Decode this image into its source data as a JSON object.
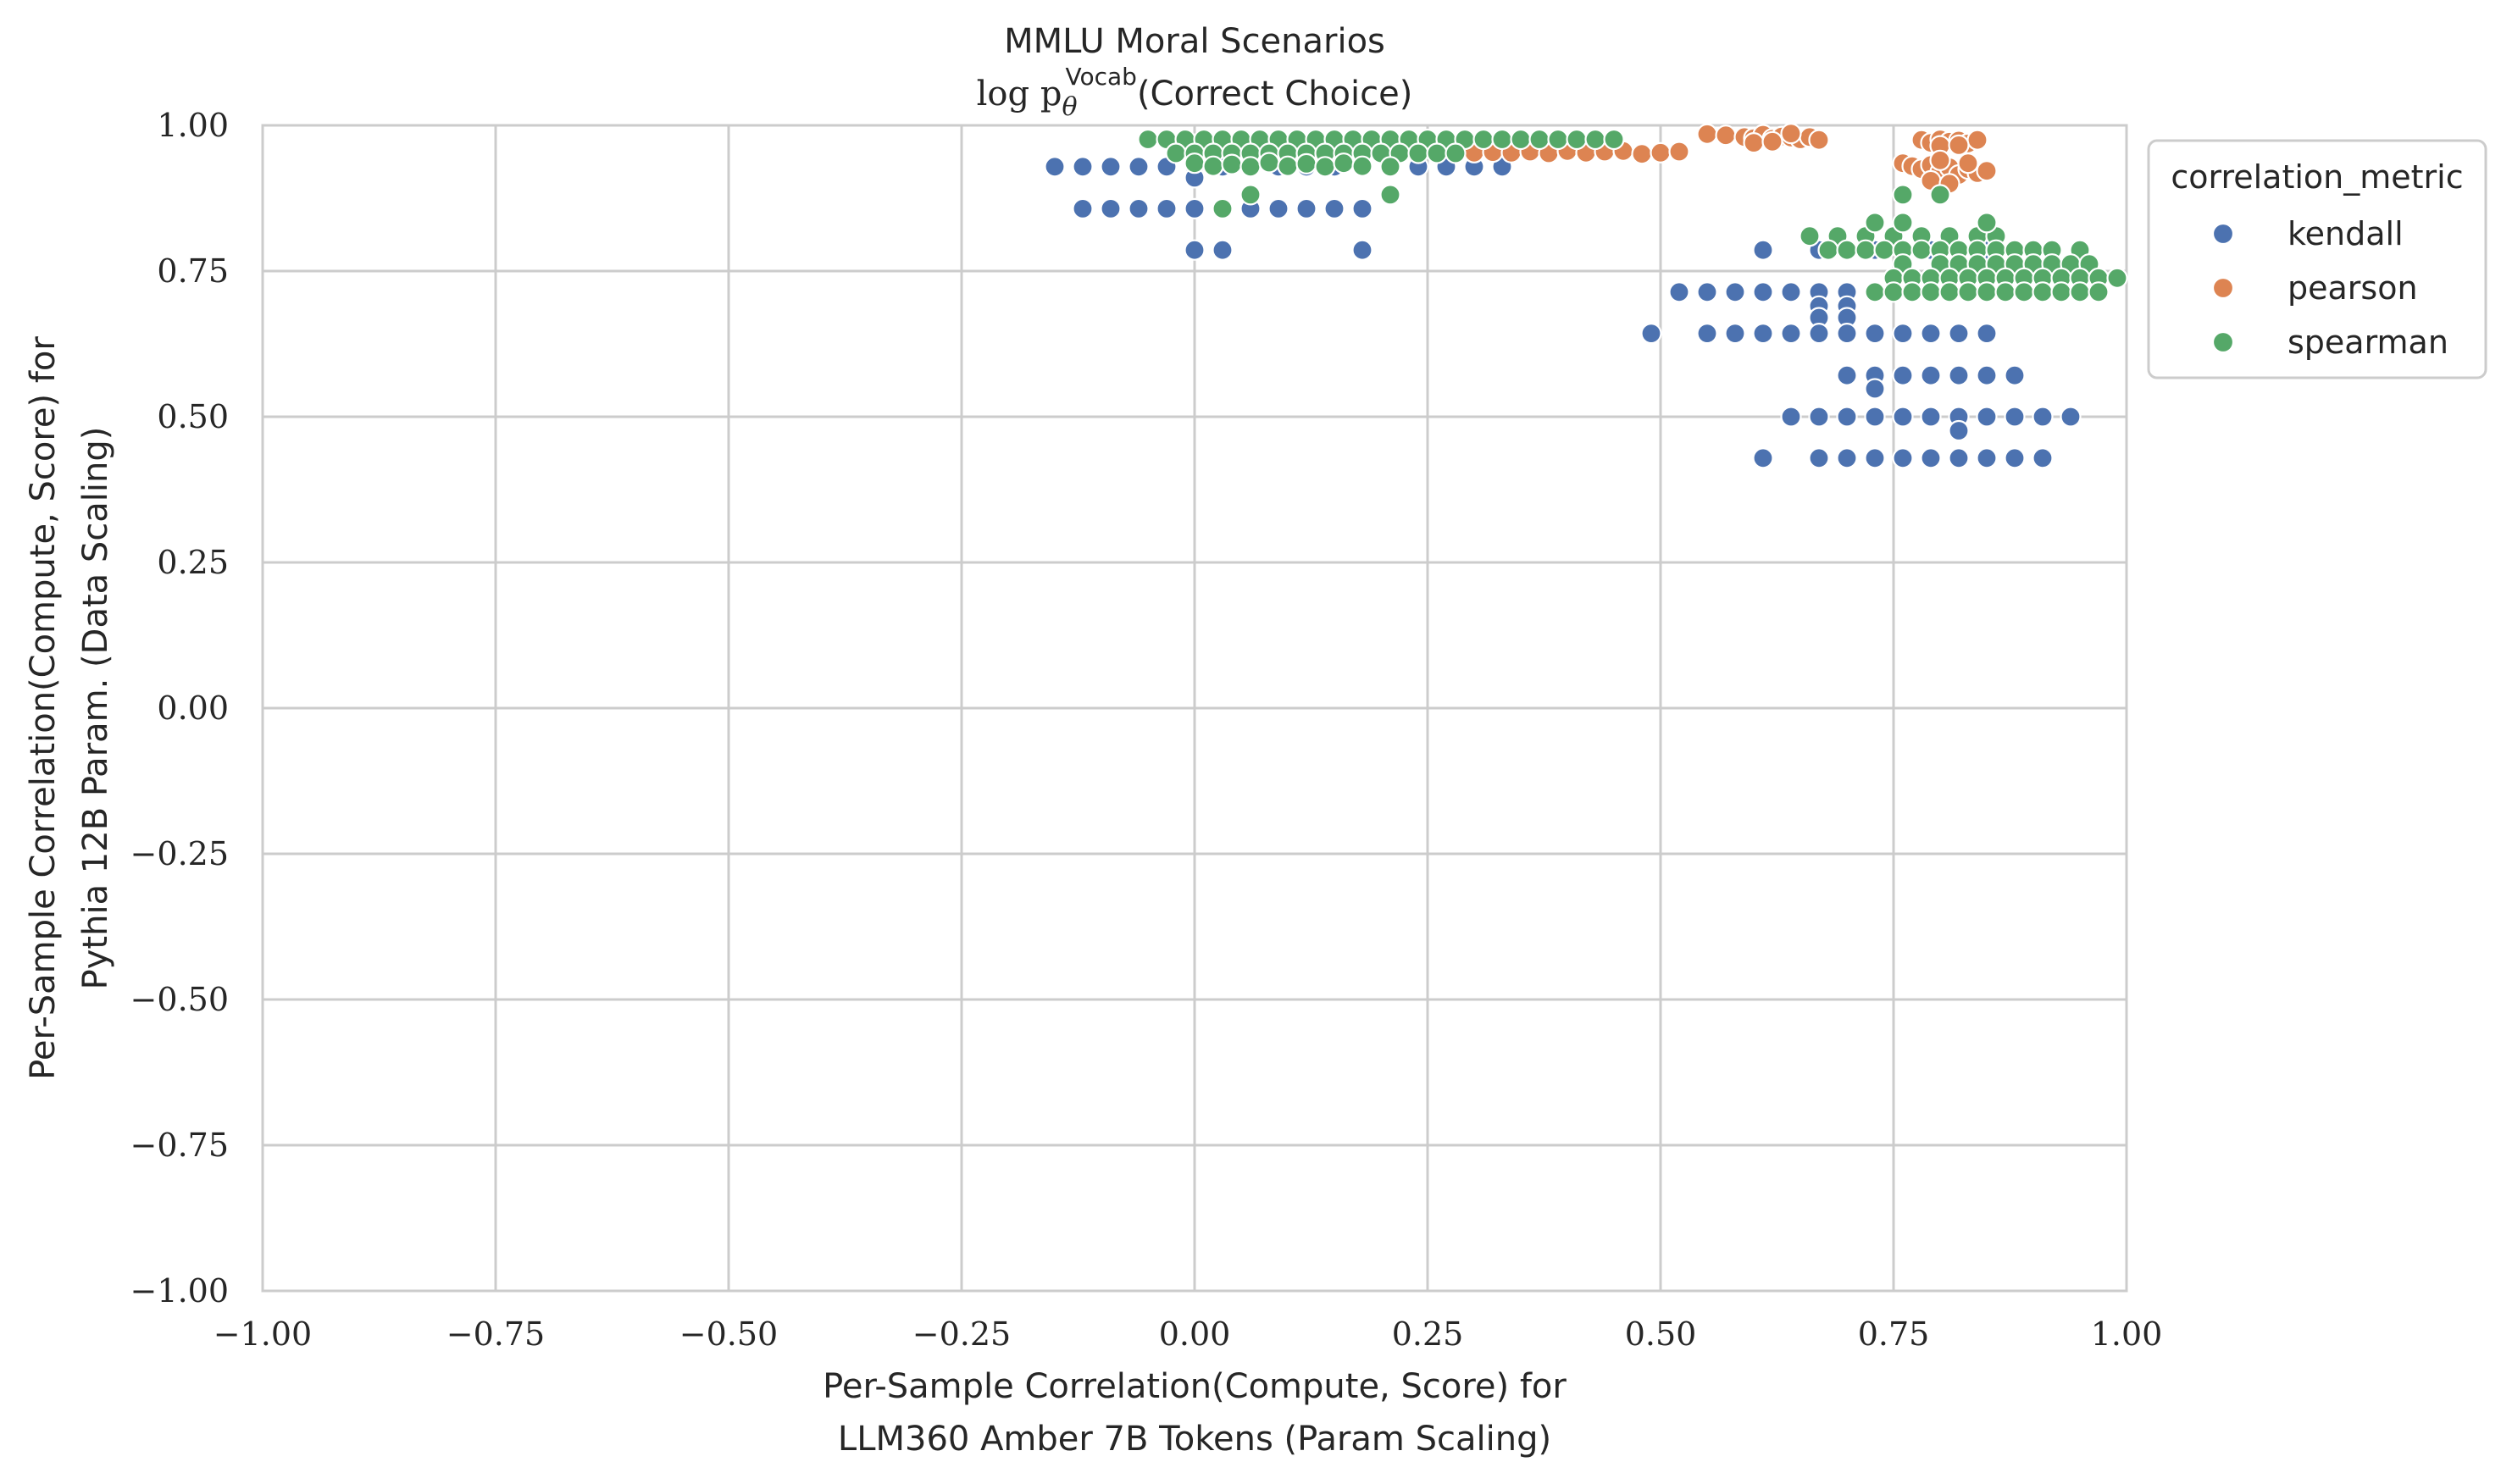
{
  "chart_data": {
    "type": "scatter",
    "title": "MMLU Moral Scenarios",
    "subtitle": {
      "prefix": "log p",
      "sub": "θ",
      "sup": "Vocab",
      "suffix": "(Correct Choice)"
    },
    "xlabel": [
      "Per-Sample Correlation(Compute, Score) for",
      "LLM360 Amber 7B Tokens (Param Scaling)"
    ],
    "ylabel": [
      "Per-Sample Correlation(Compute, Score) for",
      "Pythia 12B Param. (Data Scaling)"
    ],
    "xlim": [
      -1.0,
      1.0
    ],
    "ylim": [
      -1.0,
      1.0
    ],
    "xticks": [
      -1.0,
      -0.75,
      -0.5,
      -0.25,
      0.0,
      0.25,
      0.5,
      0.75,
      1.0
    ],
    "yticks": [
      -1.0,
      -0.75,
      -0.5,
      -0.25,
      0.0,
      0.25,
      0.5,
      0.75,
      1.0
    ],
    "xtick_labels": [
      "−1.00",
      "−0.75",
      "−0.50",
      "−0.25",
      "0.00",
      "0.25",
      "0.50",
      "0.75",
      "1.00"
    ],
    "ytick_labels": [
      "−1.00",
      "−0.75",
      "−0.50",
      "−0.25",
      "0.00",
      "0.25",
      "0.50",
      "0.75",
      "1.00"
    ],
    "grid": true,
    "legend": {
      "title": "correlation_metric",
      "placement": "outside-top-right"
    },
    "series": [
      {
        "name": "kendall",
        "color": "#4c72b0",
        "points": [
          [
            -0.15,
            0.929
          ],
          [
            -0.12,
            0.929
          ],
          [
            -0.09,
            0.929
          ],
          [
            -0.06,
            0.929
          ],
          [
            -0.03,
            0.929
          ],
          [
            0.0,
            0.929
          ],
          [
            0.03,
            0.929
          ],
          [
            0.06,
            0.929
          ],
          [
            0.09,
            0.929
          ],
          [
            0.12,
            0.929
          ],
          [
            0.15,
            0.929
          ],
          [
            0.18,
            0.929
          ],
          [
            0.21,
            0.929
          ],
          [
            0.24,
            0.929
          ],
          [
            0.27,
            0.929
          ],
          [
            0.3,
            0.929
          ],
          [
            0.33,
            0.929
          ],
          [
            0.0,
            0.91
          ],
          [
            -0.12,
            0.857
          ],
          [
            -0.09,
            0.857
          ],
          [
            -0.06,
            0.857
          ],
          [
            -0.03,
            0.857
          ],
          [
            0.0,
            0.857
          ],
          [
            0.03,
            0.857
          ],
          [
            0.06,
            0.857
          ],
          [
            0.09,
            0.857
          ],
          [
            0.12,
            0.857
          ],
          [
            0.15,
            0.857
          ],
          [
            0.18,
            0.857
          ],
          [
            0.0,
            0.786
          ],
          [
            0.03,
            0.786
          ],
          [
            0.18,
            0.786
          ],
          [
            0.61,
            0.786
          ],
          [
            0.67,
            0.786
          ],
          [
            0.7,
            0.786
          ],
          [
            0.73,
            0.786
          ],
          [
            0.76,
            0.786
          ],
          [
            0.79,
            0.786
          ],
          [
            0.82,
            0.786
          ],
          [
            0.85,
            0.786
          ],
          [
            0.52,
            0.714
          ],
          [
            0.55,
            0.714
          ],
          [
            0.58,
            0.714
          ],
          [
            0.61,
            0.714
          ],
          [
            0.64,
            0.714
          ],
          [
            0.67,
            0.714
          ],
          [
            0.7,
            0.714
          ],
          [
            0.67,
            0.69
          ],
          [
            0.7,
            0.69
          ],
          [
            0.67,
            0.67
          ],
          [
            0.7,
            0.67
          ],
          [
            0.49,
            0.643
          ],
          [
            0.55,
            0.643
          ],
          [
            0.58,
            0.643
          ],
          [
            0.61,
            0.643
          ],
          [
            0.64,
            0.643
          ],
          [
            0.67,
            0.643
          ],
          [
            0.7,
            0.643
          ],
          [
            0.73,
            0.643
          ],
          [
            0.76,
            0.643
          ],
          [
            0.79,
            0.643
          ],
          [
            0.82,
            0.643
          ],
          [
            0.85,
            0.643
          ],
          [
            0.7,
            0.571
          ],
          [
            0.73,
            0.571
          ],
          [
            0.76,
            0.571
          ],
          [
            0.79,
            0.571
          ],
          [
            0.82,
            0.571
          ],
          [
            0.85,
            0.571
          ],
          [
            0.88,
            0.571
          ],
          [
            0.73,
            0.548
          ],
          [
            0.64,
            0.5
          ],
          [
            0.67,
            0.5
          ],
          [
            0.7,
            0.5
          ],
          [
            0.73,
            0.5
          ],
          [
            0.76,
            0.5
          ],
          [
            0.79,
            0.5
          ],
          [
            0.82,
            0.5
          ],
          [
            0.85,
            0.5
          ],
          [
            0.88,
            0.5
          ],
          [
            0.91,
            0.5
          ],
          [
            0.94,
            0.5
          ],
          [
            0.82,
            0.476
          ],
          [
            0.61,
            0.429
          ],
          [
            0.67,
            0.429
          ],
          [
            0.7,
            0.429
          ],
          [
            0.73,
            0.429
          ],
          [
            0.76,
            0.429
          ],
          [
            0.79,
            0.429
          ],
          [
            0.82,
            0.429
          ],
          [
            0.85,
            0.429
          ],
          [
            0.88,
            0.429
          ],
          [
            0.91,
            0.429
          ]
        ]
      },
      {
        "name": "pearson",
        "color": "#dd8452",
        "points": [
          [
            0.22,
            0.955
          ],
          [
            0.24,
            0.952
          ],
          [
            0.26,
            0.956
          ],
          [
            0.28,
            0.955
          ],
          [
            0.3,
            0.953
          ],
          [
            0.32,
            0.954
          ],
          [
            0.34,
            0.953
          ],
          [
            0.36,
            0.955
          ],
          [
            0.38,
            0.952
          ],
          [
            0.4,
            0.956
          ],
          [
            0.42,
            0.953
          ],
          [
            0.44,
            0.955
          ],
          [
            0.46,
            0.956
          ],
          [
            0.48,
            0.951
          ],
          [
            0.5,
            0.953
          ],
          [
            0.52,
            0.955
          ],
          [
            0.55,
            0.985
          ],
          [
            0.57,
            0.983
          ],
          [
            0.59,
            0.98
          ],
          [
            0.6,
            0.978
          ],
          [
            0.61,
            0.984
          ],
          [
            0.62,
            0.977
          ],
          [
            0.63,
            0.981
          ],
          [
            0.64,
            0.979
          ],
          [
            0.65,
            0.976
          ],
          [
            0.66,
            0.98
          ],
          [
            0.67,
            0.975
          ],
          [
            0.6,
            0.97
          ],
          [
            0.62,
            0.972
          ],
          [
            0.64,
            0.986
          ],
          [
            0.78,
            0.975
          ],
          [
            0.79,
            0.97
          ],
          [
            0.8,
            0.976
          ],
          [
            0.81,
            0.972
          ],
          [
            0.82,
            0.974
          ],
          [
            0.83,
            0.969
          ],
          [
            0.84,
            0.975
          ],
          [
            0.8,
            0.965
          ],
          [
            0.82,
            0.966
          ],
          [
            0.76,
            0.935
          ],
          [
            0.77,
            0.93
          ],
          [
            0.78,
            0.925
          ],
          [
            0.79,
            0.932
          ],
          [
            0.8,
            0.92
          ],
          [
            0.81,
            0.928
          ],
          [
            0.82,
            0.915
          ],
          [
            0.83,
            0.925
          ],
          [
            0.84,
            0.918
          ],
          [
            0.85,
            0.922
          ],
          [
            0.79,
            0.905
          ],
          [
            0.81,
            0.9
          ],
          [
            0.8,
            0.94
          ],
          [
            0.83,
            0.935
          ]
        ]
      },
      {
        "name": "spearman",
        "color": "#55a868",
        "points": [
          [
            -0.05,
            0.976
          ],
          [
            -0.03,
            0.976
          ],
          [
            -0.01,
            0.976
          ],
          [
            0.01,
            0.976
          ],
          [
            0.03,
            0.976
          ],
          [
            0.05,
            0.976
          ],
          [
            0.07,
            0.976
          ],
          [
            0.09,
            0.976
          ],
          [
            0.11,
            0.976
          ],
          [
            0.13,
            0.976
          ],
          [
            0.15,
            0.976
          ],
          [
            0.17,
            0.976
          ],
          [
            0.19,
            0.976
          ],
          [
            0.21,
            0.976
          ],
          [
            0.23,
            0.976
          ],
          [
            0.25,
            0.976
          ],
          [
            0.27,
            0.976
          ],
          [
            0.29,
            0.976
          ],
          [
            0.31,
            0.976
          ],
          [
            0.33,
            0.976
          ],
          [
            0.35,
            0.976
          ],
          [
            0.37,
            0.976
          ],
          [
            0.39,
            0.976
          ],
          [
            0.41,
            0.976
          ],
          [
            0.43,
            0.976
          ],
          [
            0.45,
            0.976
          ],
          [
            -0.02,
            0.952
          ],
          [
            0.0,
            0.952
          ],
          [
            0.02,
            0.952
          ],
          [
            0.04,
            0.952
          ],
          [
            0.06,
            0.952
          ],
          [
            0.08,
            0.952
          ],
          [
            0.1,
            0.952
          ],
          [
            0.12,
            0.952
          ],
          [
            0.14,
            0.952
          ],
          [
            0.16,
            0.952
          ],
          [
            0.18,
            0.952
          ],
          [
            0.2,
            0.952
          ],
          [
            0.22,
            0.952
          ],
          [
            0.24,
            0.952
          ],
          [
            0.26,
            0.952
          ],
          [
            0.28,
            0.952
          ],
          [
            0.0,
            0.935
          ],
          [
            0.02,
            0.93
          ],
          [
            0.04,
            0.933
          ],
          [
            0.06,
            0.929
          ],
          [
            0.08,
            0.936
          ],
          [
            0.1,
            0.93
          ],
          [
            0.12,
            0.934
          ],
          [
            0.14,
            0.929
          ],
          [
            0.16,
            0.935
          ],
          [
            0.18,
            0.93
          ],
          [
            0.21,
            0.929
          ],
          [
            0.03,
            0.857
          ],
          [
            0.06,
            0.881
          ],
          [
            0.21,
            0.881
          ],
          [
            0.66,
            0.81
          ],
          [
            0.69,
            0.81
          ],
          [
            0.72,
            0.81
          ],
          [
            0.75,
            0.81
          ],
          [
            0.78,
            0.81
          ],
          [
            0.81,
            0.81
          ],
          [
            0.84,
            0.81
          ],
          [
            0.86,
            0.81
          ],
          [
            0.73,
            0.833
          ],
          [
            0.76,
            0.833
          ],
          [
            0.85,
            0.833
          ],
          [
            0.68,
            0.786
          ],
          [
            0.7,
            0.786
          ],
          [
            0.72,
            0.786
          ],
          [
            0.74,
            0.786
          ],
          [
            0.76,
            0.786
          ],
          [
            0.78,
            0.786
          ],
          [
            0.8,
            0.786
          ],
          [
            0.82,
            0.786
          ],
          [
            0.84,
            0.786
          ],
          [
            0.86,
            0.786
          ],
          [
            0.88,
            0.786
          ],
          [
            0.9,
            0.786
          ],
          [
            0.92,
            0.786
          ],
          [
            0.95,
            0.786
          ],
          [
            0.76,
            0.762
          ],
          [
            0.8,
            0.762
          ],
          [
            0.82,
            0.762
          ],
          [
            0.84,
            0.762
          ],
          [
            0.86,
            0.762
          ],
          [
            0.88,
            0.762
          ],
          [
            0.9,
            0.762
          ],
          [
            0.92,
            0.762
          ],
          [
            0.94,
            0.762
          ],
          [
            0.96,
            0.762
          ],
          [
            0.75,
            0.738
          ],
          [
            0.77,
            0.738
          ],
          [
            0.79,
            0.738
          ],
          [
            0.81,
            0.738
          ],
          [
            0.83,
            0.738
          ],
          [
            0.85,
            0.738
          ],
          [
            0.87,
            0.738
          ],
          [
            0.89,
            0.738
          ],
          [
            0.91,
            0.738
          ],
          [
            0.93,
            0.738
          ],
          [
            0.95,
            0.738
          ],
          [
            0.97,
            0.738
          ],
          [
            0.99,
            0.738
          ],
          [
            0.73,
            0.714
          ],
          [
            0.75,
            0.714
          ],
          [
            0.77,
            0.714
          ],
          [
            0.79,
            0.714
          ],
          [
            0.81,
            0.714
          ],
          [
            0.83,
            0.714
          ],
          [
            0.85,
            0.714
          ],
          [
            0.87,
            0.714
          ],
          [
            0.89,
            0.714
          ],
          [
            0.91,
            0.714
          ],
          [
            0.93,
            0.714
          ],
          [
            0.95,
            0.714
          ],
          [
            0.97,
            0.714
          ],
          [
            0.76,
            0.881
          ],
          [
            0.8,
            0.881
          ]
        ]
      }
    ]
  }
}
